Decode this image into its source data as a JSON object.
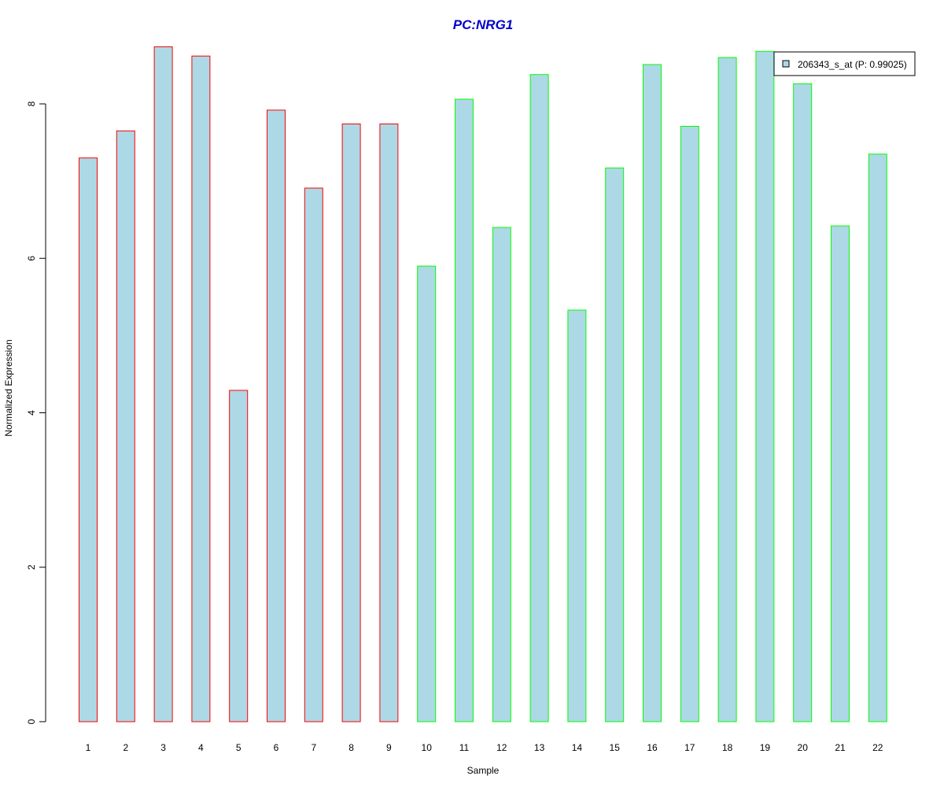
{
  "chart_data": {
    "type": "bar",
    "title": "PC:NRG1",
    "xlabel": "Sample",
    "ylabel": "Normalized Expression",
    "ylim": [
      0,
      8.8
    ],
    "yticks": [
      0,
      2,
      4,
      6,
      8
    ],
    "categories": [
      "1",
      "2",
      "3",
      "4",
      "5",
      "6",
      "7",
      "8",
      "9",
      "10",
      "11",
      "12",
      "13",
      "14",
      "15",
      "16",
      "17",
      "18",
      "19",
      "20",
      "21",
      "22"
    ],
    "series": [
      {
        "name": "206343_s_at (P: 0.99025)",
        "values": [
          7.3,
          7.65,
          8.74,
          8.62,
          4.29,
          7.92,
          6.91,
          7.74,
          7.74,
          5.9,
          8.06,
          6.4,
          8.38,
          5.33,
          7.17,
          8.51,
          7.71,
          8.6,
          8.68,
          8.26,
          6.42,
          7.35
        ]
      }
    ],
    "groups": [
      {
        "samples": [
          1,
          9
        ],
        "border_color": "#ff0000"
      },
      {
        "samples": [
          10,
          22
        ],
        "border_color": "#00ff00"
      }
    ],
    "bar_fill": "#add8e6",
    "title_color": "#0000cd",
    "legend_position": "top-right",
    "grid": false
  }
}
